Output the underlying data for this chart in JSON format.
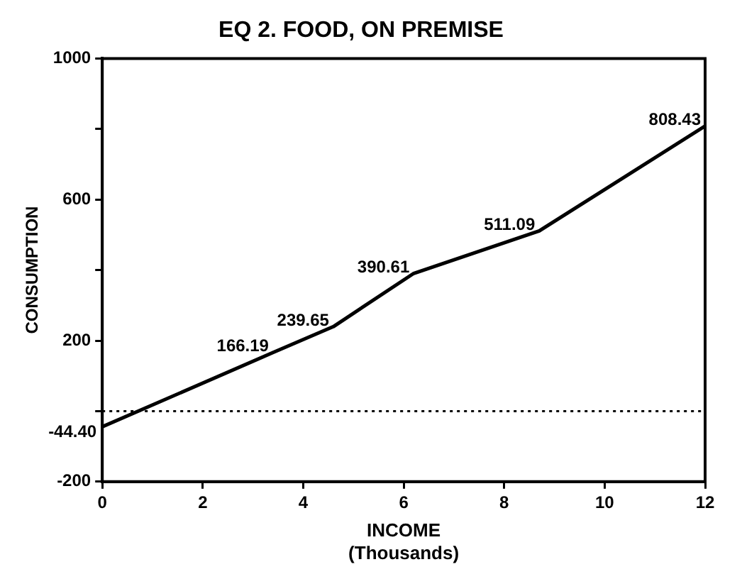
{
  "chart_data": {
    "type": "line",
    "title": "EQ 2. FOOD, ON PREMISE",
    "xlabel": "INCOME\n(Thousands)",
    "ylabel": "CONSUMPTION",
    "x": [
      0,
      3.4,
      4.6,
      6.2,
      8.7,
      12
    ],
    "series": [
      {
        "color": "#000000",
        "values": [
          -44.4,
          166.19,
          239.65,
          390.61,
          511.09,
          808.43
        ],
        "value_labels": [
          "-44.40",
          "166.19",
          "239.65",
          "390.61",
          "511.09",
          "808.43"
        ]
      }
    ],
    "xlim": [
      0,
      12
    ],
    "xticks": [
      0,
      2,
      4,
      6,
      8,
      10,
      12
    ],
    "ylim": [
      -200,
      1000
    ],
    "yticks": [
      -200,
      {
        "value": 0,
        "label": null
      },
      200,
      {
        "value": 400,
        "label": null
      },
      600,
      {
        "value": 800,
        "label": null
      },
      1000
    ],
    "ref_lines": [
      {
        "axis": "y",
        "value": 0,
        "line_style": "dotted",
        "color": "#000000"
      }
    ],
    "grid": false,
    "legend": false,
    "marker": "none",
    "line_style": "solid"
  }
}
